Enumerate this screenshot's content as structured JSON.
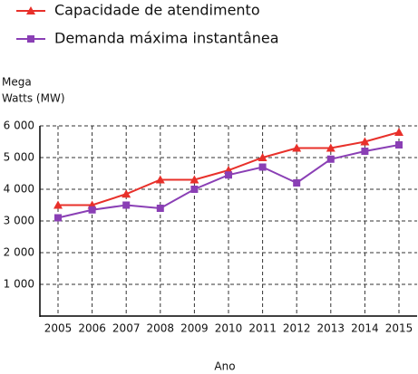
{
  "chart_data": {
    "type": "line",
    "y_label": [
      "Mega",
      "Watts (MW)"
    ],
    "x_label": "Ano",
    "categories": [
      "2005",
      "2006",
      "2007",
      "2008",
      "2009",
      "2010",
      "2011",
      "2012",
      "2013",
      "2014",
      "2015"
    ],
    "series": [
      {
        "name": "Capacidade de atendimento",
        "color": "#e8302a",
        "marker": "triangle",
        "values": [
          3500,
          3500,
          3850,
          4300,
          4300,
          4600,
          5000,
          5300,
          5300,
          5500,
          5800
        ]
      },
      {
        "name": "Demanda máxima instantânea",
        "color": "#8a3fb5",
        "marker": "square",
        "values": [
          3100,
          3350,
          3500,
          3400,
          4000,
          4450,
          4700,
          4200,
          4950,
          5200,
          5400
        ]
      }
    ],
    "ylim": [
      0,
      6000
    ],
    "yticks": [
      {
        "value": 1000,
        "label": "1 000"
      },
      {
        "value": 2000,
        "label": "2 000"
      },
      {
        "value": 3000,
        "label": "3 000"
      },
      {
        "value": 4000,
        "label": "4 000"
      },
      {
        "value": 5000,
        "label": "5 000"
      },
      {
        "value": 6000,
        "label": "6 000"
      }
    ],
    "grid": true
  }
}
